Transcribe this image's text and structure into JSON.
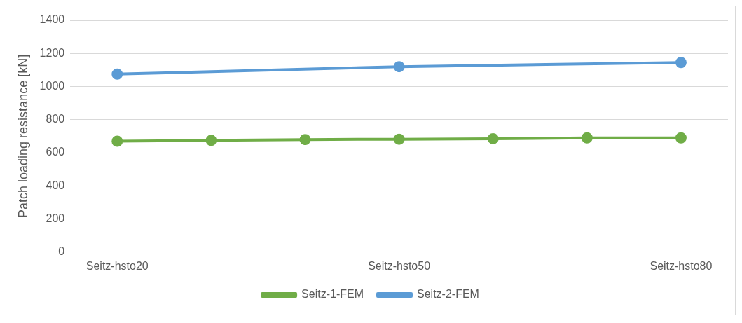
{
  "chart_data": {
    "type": "line",
    "ylabel": "Patch loading resistance [kN]",
    "categories": [
      "Seitz-hsto20",
      null,
      null,
      "Seitz-hsto50",
      null,
      null,
      "Seitz-hsto80"
    ],
    "series": [
      {
        "name": "Seitz-1-FEM",
        "color": "#70ad47",
        "values": [
          670,
          675,
          680,
          682,
          685,
          690,
          690
        ]
      },
      {
        "name": "Seitz-2-FEM",
        "color": "#5b9bd5",
        "values": [
          1075,
          null,
          null,
          1120,
          null,
          null,
          1145
        ]
      }
    ],
    "ylim": [
      0,
      1400
    ],
    "yticks": [
      0,
      200,
      400,
      600,
      800,
      1000,
      1200,
      1400
    ],
    "grid": "y",
    "legend": "bottom",
    "marker": "circle",
    "line_style": "solid"
  }
}
